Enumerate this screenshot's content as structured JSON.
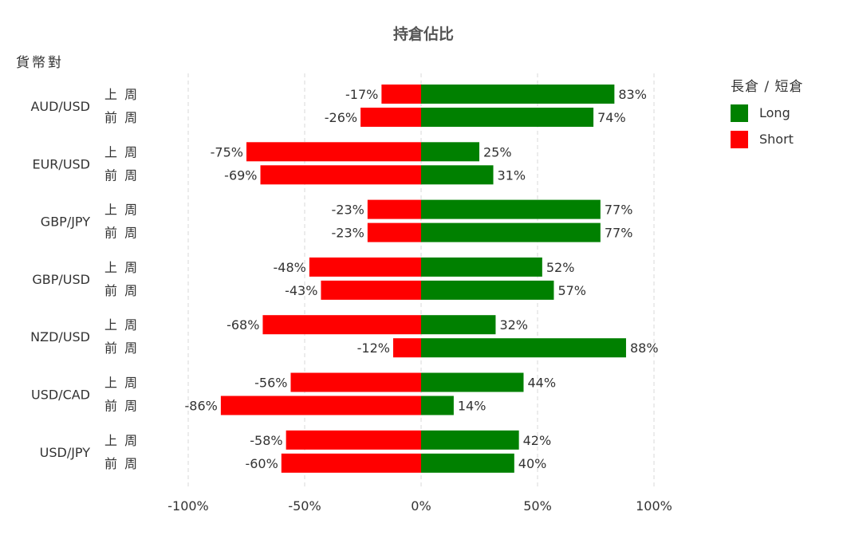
{
  "chart_data": {
    "type": "bar",
    "orientation": "horizontal",
    "stacked": "diverging",
    "title": "持倉佔比",
    "ylabel": "貨幣對",
    "xlim": [
      -100,
      100
    ],
    "xticks": [
      "-100%",
      "-50%",
      "0%",
      "50%",
      "100%"
    ],
    "grid": "vertical dashed",
    "legend_title": "長倉 / 短倉",
    "legend_position": "right",
    "period_labels": [
      "上 周",
      "前 周"
    ],
    "categories": [
      "AUD/USD",
      "EUR/USD",
      "GBP/JPY",
      "GBP/USD",
      "NZD/USD",
      "USD/CAD",
      "USD/JPY"
    ],
    "series": [
      {
        "name": "Long",
        "color": "#008000",
        "values": [
          [
            83,
            74
          ],
          [
            25,
            31
          ],
          [
            77,
            77
          ],
          [
            52,
            57
          ],
          [
            32,
            88
          ],
          [
            44,
            14
          ],
          [
            42,
            40
          ]
        ]
      },
      {
        "name": "Short",
        "color": "#ff0000",
        "values": [
          [
            -17,
            -26
          ],
          [
            -75,
            -69
          ],
          [
            -23,
            -23
          ],
          [
            -48,
            -43
          ],
          [
            -68,
            -12
          ],
          [
            -56,
            -86
          ],
          [
            -58,
            -60
          ]
        ]
      }
    ]
  }
}
